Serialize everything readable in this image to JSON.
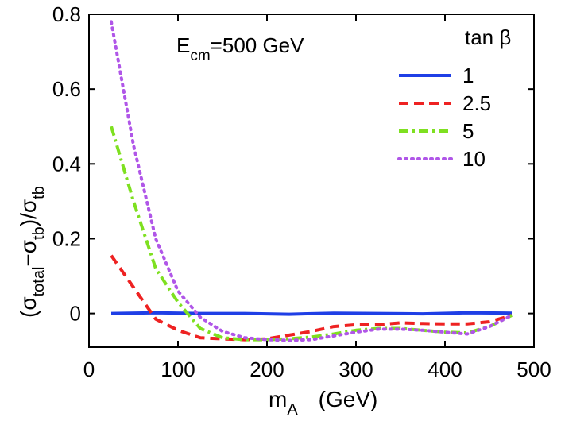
{
  "chart_data": {
    "type": "line",
    "annotation": {
      "main": "E",
      "sub": "cm",
      "rest": "=500 GeV"
    },
    "xlabel": {
      "main": "m",
      "sub": "A",
      "rest": "(GeV)"
    },
    "ylabel": {
      "p1": "(σ",
      "s1": "total",
      "p2": "−σ",
      "s2": "tb",
      "p3": ")/σ",
      "s3": "tb"
    },
    "xlim": [
      0,
      500
    ],
    "ylim": [
      -0.09,
      0.8
    ],
    "xticks": [
      0,
      100,
      200,
      300,
      400,
      500
    ],
    "xtick_labels": [
      "0",
      "100",
      "200",
      "300",
      "400",
      "500"
    ],
    "yticks": [
      0,
      0.2,
      0.4,
      0.6,
      0.8
    ],
    "ytick_labels": [
      "0",
      "0.2",
      "0.4",
      "0.6",
      "0.8"
    ],
    "legend_title": "tan β",
    "legend_position": "top-right",
    "series": [
      {
        "name": "1",
        "color": "#1f3fe6",
        "style": "solid",
        "x": [
          25,
          75,
          125,
          175,
          225,
          275,
          325,
          375,
          425,
          475
        ],
        "y": [
          0.0,
          0.002,
          0.0,
          0.0,
          -0.002,
          0.001,
          0.0,
          -0.001,
          0.002,
          0.001
        ]
      },
      {
        "name": "2.5",
        "color": "#ee2222",
        "style": "dashed",
        "x": [
          25,
          50,
          75,
          100,
          125,
          150,
          175,
          200,
          225,
          250,
          275,
          300,
          325,
          350,
          375,
          400,
          425,
          450,
          475
        ],
        "y": [
          0.155,
          0.07,
          -0.015,
          -0.045,
          -0.065,
          -0.068,
          -0.07,
          -0.068,
          -0.058,
          -0.048,
          -0.035,
          -0.03,
          -0.03,
          -0.025,
          -0.027,
          -0.028,
          -0.028,
          -0.022,
          -0.005
        ]
      },
      {
        "name": "5",
        "color": "#7ee020",
        "style": "dashdot",
        "x": [
          25,
          50,
          75,
          100,
          125,
          150,
          175,
          200,
          225,
          250,
          275,
          300,
          325,
          350,
          375,
          400,
          425,
          450,
          475
        ],
        "y": [
          0.5,
          0.3,
          0.12,
          0.03,
          -0.04,
          -0.065,
          -0.07,
          -0.07,
          -0.068,
          -0.063,
          -0.055,
          -0.045,
          -0.04,
          -0.04,
          -0.045,
          -0.05,
          -0.052,
          -0.035,
          -0.005
        ]
      },
      {
        "name": "10",
        "color": "#b056e8",
        "style": "dotted",
        "x": [
          25,
          50,
          75,
          100,
          125,
          150,
          175,
          200,
          225,
          250,
          275,
          300,
          325,
          350,
          375,
          400,
          425,
          450,
          475
        ],
        "y": [
          0.78,
          0.45,
          0.2,
          0.06,
          -0.01,
          -0.048,
          -0.065,
          -0.07,
          -0.072,
          -0.07,
          -0.06,
          -0.05,
          -0.042,
          -0.042,
          -0.045,
          -0.05,
          -0.055,
          -0.035,
          -0.005
        ]
      }
    ]
  }
}
